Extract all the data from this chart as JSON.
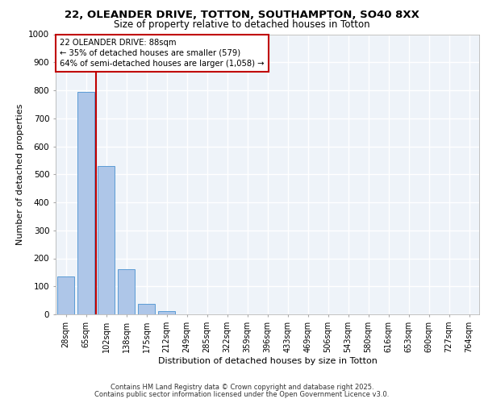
{
  "title_line1": "22, OLEANDER DRIVE, TOTTON, SOUTHAMPTON, SO40 8XX",
  "title_line2": "Size of property relative to detached houses in Totton",
  "xlabel": "Distribution of detached houses by size in Totton",
  "ylabel": "Number of detached properties",
  "bar_labels": [
    "28sqm",
    "65sqm",
    "102sqm",
    "138sqm",
    "175sqm",
    "212sqm",
    "249sqm",
    "285sqm",
    "322sqm",
    "359sqm",
    "396sqm",
    "433sqm",
    "469sqm",
    "506sqm",
    "543sqm",
    "580sqm",
    "616sqm",
    "653sqm",
    "690sqm",
    "727sqm",
    "764sqm"
  ],
  "bar_values": [
    135,
    795,
    530,
    160,
    37,
    12,
    0,
    0,
    0,
    0,
    0,
    0,
    0,
    0,
    0,
    0,
    0,
    0,
    0,
    0,
    0
  ],
  "bar_color": "#aec6e8",
  "bar_edge_color": "#5b9bd5",
  "vline_x": 1.5,
  "vline_color": "#c00000",
  "annotation_text": "22 OLEANDER DRIVE: 88sqm\n← 35% of detached houses are smaller (579)\n64% of semi-detached houses are larger (1,058) →",
  "annotation_box_color": "#c00000",
  "ylim": [
    0,
    1000
  ],
  "yticks": [
    0,
    100,
    200,
    300,
    400,
    500,
    600,
    700,
    800,
    900,
    1000
  ],
  "bg_color": "#eef3f9",
  "grid_color": "#ffffff",
  "footer_line1": "Contains HM Land Registry data © Crown copyright and database right 2025.",
  "footer_line2": "Contains public sector information licensed under the Open Government Licence v3.0."
}
